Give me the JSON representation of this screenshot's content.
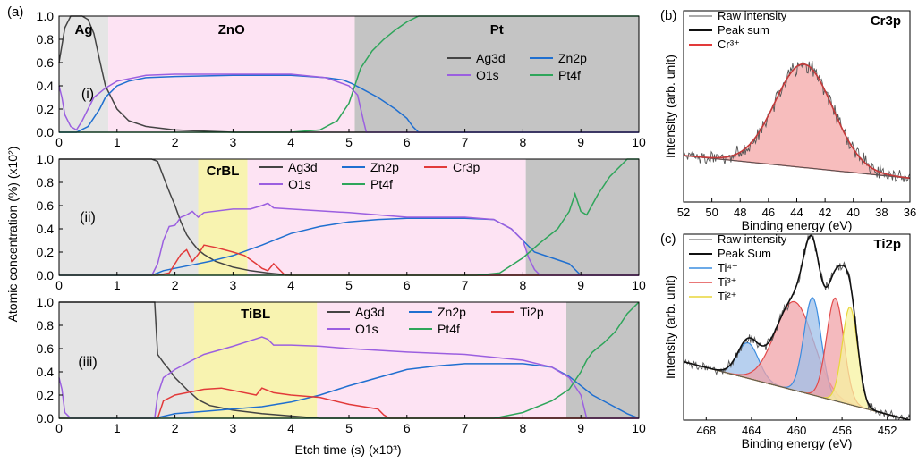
{
  "figure": {
    "shared_ylabel": "Atomic concentration (%) (x10²)",
    "shared_xlabel": "Etch time (s) (x10³)",
    "panel_labels": {
      "a": "(a)",
      "b": "(b)",
      "c": "(c)"
    }
  },
  "colors": {
    "Ag3d": "#444444",
    "Zn2p": "#1f6fd0",
    "O1s": "#9b5fe0",
    "Pt4f": "#2ea55a",
    "Cr3p": "#e23a3a",
    "Ti2p": "#e23a3a",
    "raw": "#555555",
    "peaksum": "#111111",
    "bg_line": "#555555",
    "ag_region": "#e5e5e5",
    "zno_region": "#fde3f3",
    "bl_region": "#f8f3b0",
    "pt_region": "#c4c4c4",
    "fill_cr3": "#f4a7a7",
    "fill_ti4": "#9fc0ea",
    "fill_ti3": "#f0a3a8",
    "fill_ti2": "#f7f3a0",
    "ti4_line": "#3b8de0",
    "ti3_line": "#e24a4a",
    "ti2_line": "#e8d63a"
  },
  "chart_data": [
    {
      "panel": "(i)",
      "type": "line",
      "xlim": [
        0,
        10
      ],
      "ylim": [
        0,
        1.0
      ],
      "xticks": [
        "0",
        "1",
        "2",
        "3",
        "4",
        "5",
        "6",
        "7",
        "8",
        "9",
        "10"
      ],
      "yticks": [
        "0.0",
        "0.2",
        "0.4",
        "0.6",
        "0.8",
        "1.0"
      ],
      "regions": [
        {
          "label": "Ag",
          "x0": 0,
          "x1": 0.85,
          "kind": "ag"
        },
        {
          "label": "ZnO",
          "x0": 0.85,
          "x1": 5.1,
          "kind": "zno"
        },
        {
          "label": "Pt",
          "x0": 5.1,
          "x1": 10,
          "kind": "pt"
        }
      ],
      "legend": [
        "Ag3d",
        "Zn2p",
        "O1s",
        "Pt4f"
      ],
      "series": [
        {
          "name": "Ag3d",
          "x": [
            0,
            0.1,
            0.2,
            0.3,
            0.4,
            0.5,
            0.6,
            0.7,
            0.8,
            1.0,
            1.2,
            1.5,
            2.0,
            2.5,
            3,
            10
          ],
          "y": [
            0.6,
            0.9,
            1.0,
            1.0,
            1.0,
            0.97,
            0.85,
            0.62,
            0.4,
            0.2,
            0.1,
            0.05,
            0.02,
            0.01,
            0,
            0
          ]
        },
        {
          "name": "Zn2p",
          "x": [
            0,
            0.3,
            0.5,
            0.7,
            0.8,
            1.0,
            1.2,
            1.5,
            2,
            3,
            4,
            4.6,
            4.9,
            5.05,
            5.2,
            5.5,
            5.8,
            6.0,
            6.1,
            6.2,
            10
          ],
          "y": [
            0,
            0,
            0.05,
            0.2,
            0.3,
            0.4,
            0.44,
            0.47,
            0.48,
            0.49,
            0.49,
            0.47,
            0.45,
            0.42,
            0.38,
            0.3,
            0.2,
            0.12,
            0.05,
            0,
            0
          ]
        },
        {
          "name": "O1s",
          "x": [
            0,
            0.05,
            0.1,
            0.2,
            0.3,
            0.4,
            0.5,
            0.6,
            0.8,
            1.0,
            1.5,
            2,
            3,
            4,
            4.6,
            5.0,
            5.15,
            5.25,
            5.3,
            10
          ],
          "y": [
            0.4,
            0.3,
            0.15,
            0.05,
            0.02,
            0.1,
            0.2,
            0.3,
            0.38,
            0.44,
            0.49,
            0.5,
            0.5,
            0.5,
            0.47,
            0.4,
            0.32,
            0.1,
            0,
            0
          ]
        },
        {
          "name": "Pt4f",
          "x": [
            0,
            4,
            4.5,
            4.8,
            5.0,
            5.1,
            5.2,
            5.4,
            5.6,
            5.8,
            6.0,
            6.2,
            10
          ],
          "y": [
            0,
            0,
            0.02,
            0.1,
            0.25,
            0.4,
            0.55,
            0.7,
            0.8,
            0.88,
            0.95,
            1.0,
            1.0
          ]
        }
      ]
    },
    {
      "panel": "(ii)",
      "type": "line",
      "xlim": [
        0,
        10
      ],
      "ylim": [
        0,
        1.0
      ],
      "xticks": [
        "0",
        "1",
        "2",
        "3",
        "4",
        "5",
        "6",
        "7",
        "8",
        "9",
        "10"
      ],
      "yticks": [
        "0.0",
        "0.2",
        "0.4",
        "0.6",
        "0.8",
        "1.0"
      ],
      "regions": [
        {
          "label": "",
          "x0": 0,
          "x1": 2.4,
          "kind": "ag"
        },
        {
          "label": "CrBL",
          "x0": 2.4,
          "x1": 3.25,
          "kind": "bl"
        },
        {
          "label": "",
          "x0": 3.25,
          "x1": 8.05,
          "kind": "zno"
        },
        {
          "label": "",
          "x0": 8.05,
          "x1": 10,
          "kind": "pt"
        }
      ],
      "legend": [
        "Ag3d",
        "Zn2p",
        "Cr3p",
        "O1s",
        "Pt4f"
      ],
      "series": [
        {
          "name": "Ag3d",
          "x": [
            0,
            1.6,
            1.7,
            1.8,
            1.9,
            2.0,
            2.1,
            2.2,
            2.3,
            2.4,
            2.5,
            2.7,
            3.0,
            3.3,
            3.6,
            4,
            10
          ],
          "y": [
            1,
            1,
            0.98,
            0.85,
            0.72,
            0.6,
            0.46,
            0.35,
            0.28,
            0.22,
            0.18,
            0.12,
            0.07,
            0.04,
            0.02,
            0,
            0
          ]
        },
        {
          "name": "Zn2p",
          "x": [
            0,
            1.6,
            1.8,
            2.0,
            2.3,
            2.6,
            3.0,
            3.5,
            4.0,
            4.5,
            5.0,
            5.5,
            6,
            7,
            7.5,
            7.8,
            8.0,
            8.2,
            8.5,
            8.8,
            9.0,
            10
          ],
          "y": [
            0,
            0,
            0.04,
            0.06,
            0.09,
            0.12,
            0.17,
            0.26,
            0.36,
            0.42,
            0.46,
            0.48,
            0.49,
            0.49,
            0.48,
            0.4,
            0.3,
            0.2,
            0.15,
            0.1,
            0,
            0
          ]
        },
        {
          "name": "Cr3p",
          "x": [
            0,
            1.7,
            1.9,
            2.0,
            2.1,
            2.2,
            2.3,
            2.4,
            2.5,
            2.7,
            3.0,
            3.2,
            3.4,
            3.5,
            3.6,
            3.7,
            3.8,
            3.9,
            10
          ],
          "y": [
            0,
            0,
            0.02,
            0.1,
            0.18,
            0.22,
            0.12,
            0.18,
            0.26,
            0.24,
            0.2,
            0.17,
            0.1,
            0.06,
            0.04,
            0.1,
            0.05,
            0,
            0
          ]
        },
        {
          "name": "O1s",
          "x": [
            0,
            1.6,
            1.7,
            1.8,
            1.9,
            2.0,
            2.1,
            2.2,
            2.3,
            2.4,
            2.5,
            3.0,
            3.3,
            3.5,
            3.6,
            3.7,
            4.0,
            5.0,
            6,
            7,
            7.5,
            7.8,
            8.0,
            8.1,
            8.2,
            8.3,
            10
          ],
          "y": [
            0,
            0,
            0.1,
            0.3,
            0.42,
            0.43,
            0.5,
            0.52,
            0.55,
            0.5,
            0.54,
            0.57,
            0.57,
            0.6,
            0.62,
            0.58,
            0.57,
            0.54,
            0.5,
            0.5,
            0.48,
            0.4,
            0.3,
            0.15,
            0.05,
            0,
            0
          ]
        },
        {
          "name": "Pt4f",
          "x": [
            0,
            7.2,
            7.6,
            8.0,
            8.3,
            8.6,
            8.8,
            8.9,
            9.0,
            9.1,
            9.3,
            9.5,
            9.7,
            9.8,
            10
          ],
          "y": [
            0,
            0,
            0.02,
            0.15,
            0.28,
            0.4,
            0.55,
            0.7,
            0.55,
            0.52,
            0.7,
            0.85,
            0.95,
            1.0,
            1.0
          ]
        }
      ]
    },
    {
      "panel": "(iii)",
      "type": "line",
      "xlim": [
        0,
        10
      ],
      "ylim": [
        0,
        1.0
      ],
      "xticks": [
        "0",
        "1",
        "2",
        "3",
        "4",
        "5",
        "6",
        "7",
        "8",
        "9",
        "10"
      ],
      "yticks": [
        "0.0",
        "0.2",
        "0.4",
        "0.6",
        "0.8",
        "1.0"
      ],
      "regions": [
        {
          "label": "",
          "x0": 0,
          "x1": 2.33,
          "kind": "ag"
        },
        {
          "label": "TiBL",
          "x0": 2.33,
          "x1": 4.45,
          "kind": "bl"
        },
        {
          "label": "",
          "x0": 4.45,
          "x1": 8.75,
          "kind": "zno"
        },
        {
          "label": "",
          "x0": 8.75,
          "x1": 10,
          "kind": "pt"
        }
      ],
      "legend": [
        "Ag3d",
        "Zn2p",
        "Ti2p",
        "O1s",
        "Pt4f"
      ],
      "series": [
        {
          "name": "Ag3d",
          "x": [
            0,
            1.65,
            1.7,
            1.8,
            1.9,
            2.0,
            2.2,
            2.4,
            2.6,
            3.0,
            3.5,
            4.0,
            4.5,
            10
          ],
          "y": [
            1,
            1,
            0.55,
            0.48,
            0.42,
            0.35,
            0.25,
            0.16,
            0.11,
            0.07,
            0.04,
            0.02,
            0,
            0
          ]
        },
        {
          "name": "Zn2p",
          "x": [
            0,
            1.65,
            2.0,
            2.5,
            3.0,
            3.5,
            4.0,
            4.5,
            5.0,
            5.5,
            6.0,
            6.5,
            7,
            8,
            8.5,
            8.8,
            9.0,
            9.2,
            9.5,
            9.8,
            10
          ],
          "y": [
            0,
            0,
            0.04,
            0.06,
            0.08,
            0.1,
            0.14,
            0.2,
            0.28,
            0.35,
            0.42,
            0.45,
            0.47,
            0.47,
            0.44,
            0.36,
            0.28,
            0.2,
            0.12,
            0.04,
            0
          ]
        },
        {
          "name": "Ti2p",
          "x": [
            0,
            1.7,
            1.8,
            2.0,
            2.2,
            2.5,
            2.8,
            3.0,
            3.4,
            3.5,
            3.7,
            4.0,
            4.5,
            5.0,
            5.5,
            5.6,
            5.7,
            10
          ],
          "y": [
            0,
            0,
            0.15,
            0.2,
            0.22,
            0.25,
            0.26,
            0.24,
            0.2,
            0.26,
            0.22,
            0.2,
            0.18,
            0.12,
            0.08,
            0.03,
            0,
            0
          ]
        },
        {
          "name": "O1s",
          "x": [
            0,
            0.05,
            0.1,
            0.2,
            1.65,
            1.7,
            1.8,
            2.0,
            2.3,
            2.5,
            3.0,
            3.5,
            3.6,
            3.7,
            4.0,
            4.5,
            5,
            6,
            7,
            8,
            8.5,
            8.8,
            9.0,
            9.1,
            10
          ],
          "y": [
            0.35,
            0.25,
            0.05,
            0,
            0,
            0.2,
            0.35,
            0.42,
            0.5,
            0.55,
            0.62,
            0.7,
            0.68,
            0.63,
            0.63,
            0.62,
            0.6,
            0.57,
            0.55,
            0.5,
            0.44,
            0.35,
            0.2,
            0,
            0
          ]
        },
        {
          "name": "Pt4f",
          "x": [
            0,
            7.5,
            8.0,
            8.5,
            8.8,
            9.0,
            9.1,
            9.2,
            9.4,
            9.6,
            9.8,
            10
          ],
          "y": [
            0,
            0,
            0.05,
            0.15,
            0.25,
            0.4,
            0.5,
            0.57,
            0.65,
            0.75,
            0.9,
            1.0
          ]
        }
      ]
    },
    {
      "panel": "(b)",
      "type": "line",
      "title": "Cr3p",
      "xlabel": "Binding energy (eV)",
      "ylabel": "Intensity (arb. unit)",
      "xlim": [
        52,
        36
      ],
      "xticks": [
        "52",
        "50",
        "48",
        "46",
        "44",
        "42",
        "40",
        "38",
        "36"
      ],
      "legend": [
        "Raw intensity",
        "Peak sum",
        "Cr³⁺"
      ],
      "components": [
        {
          "name": "Cr³⁺",
          "center": 43.5,
          "fwhm": 4.8,
          "height": 1.0
        }
      ],
      "background": {
        "start": 0.1,
        "end": -0.12
      }
    },
    {
      "panel": "(c)",
      "type": "line",
      "title": "Ti2p",
      "xlabel": "Binding energy (eV)",
      "ylabel": "Intensity (arb. unit)",
      "xlim": [
        470,
        450
      ],
      "xticks": [
        "468",
        "464",
        "460",
        "456",
        "452"
      ],
      "legend": [
        "Raw intensity",
        "Peak Sum",
        "Ti⁴⁺",
        "Ti³⁺",
        "Ti²⁺"
      ],
      "components": [
        {
          "name": "Ti⁴⁺",
          "center": 464.3,
          "fwhm": 2.2,
          "height": 0.2
        },
        {
          "name": "Ti³⁺",
          "center": 460.2,
          "fwhm": 4.0,
          "height": 0.5
        },
        {
          "name": "Ti⁴⁺",
          "center": 458.6,
          "fwhm": 1.8,
          "height": 0.55
        },
        {
          "name": "Ti³⁺",
          "center": 456.6,
          "fwhm": 1.8,
          "height": 0.58
        },
        {
          "name": "Ti²⁺",
          "center": 455.3,
          "fwhm": 1.6,
          "height": 0.55
        }
      ],
      "background": {
        "start": 0.28,
        "end": -0.05
      }
    }
  ]
}
